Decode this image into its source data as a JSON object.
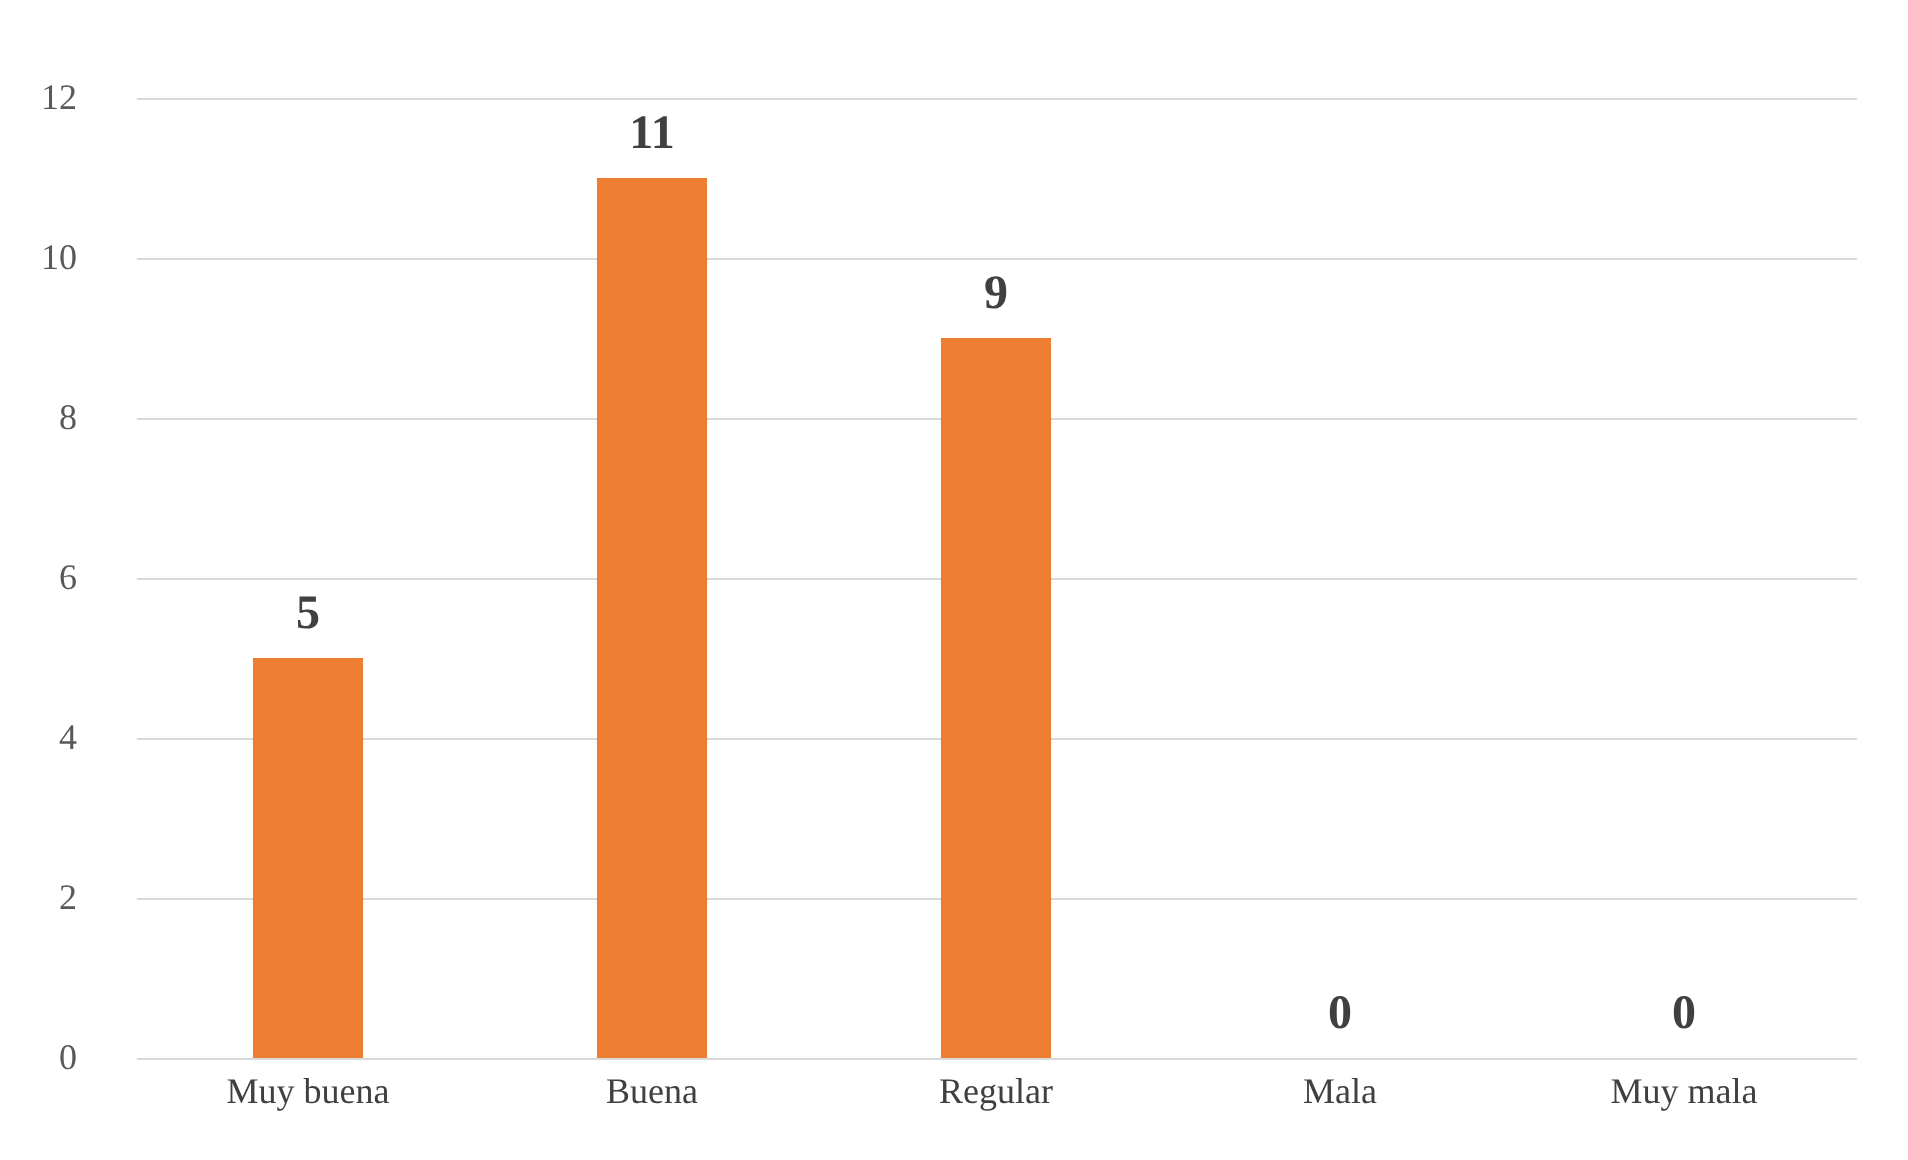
{
  "chart_data": {
    "type": "bar",
    "categories": [
      "Muy buena",
      "Buena",
      "Regular",
      "Mala",
      "Muy mala"
    ],
    "values": [
      5,
      11,
      9,
      0,
      0
    ],
    "color": "#ed7d31",
    "ylim": [
      0,
      12
    ],
    "yticks": [
      0,
      2,
      4,
      6,
      8,
      10,
      12
    ],
    "grid": "y",
    "data_labels": true
  }
}
